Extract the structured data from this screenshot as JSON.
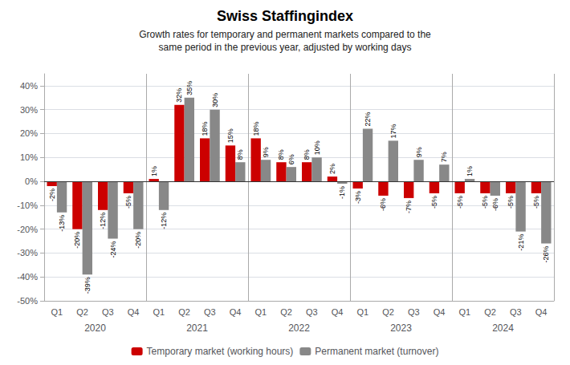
{
  "chart_data": {
    "type": "bar",
    "title": "Swiss Staffingindex",
    "subtitle": "Growth rates for temporary and permanent markets compared to the\nsame period in the previous year, adjusted by working days",
    "categories": [
      "Q1",
      "Q2",
      "Q3",
      "Q4",
      "Q1",
      "Q2",
      "Q3",
      "Q4",
      "Q1",
      "Q2",
      "Q3",
      "Q4",
      "Q1",
      "Q2",
      "Q3",
      "Q4",
      "Q1",
      "Q2",
      "Q3",
      "Q4"
    ],
    "annotations": [
      "2020",
      "2021",
      "2022",
      "2023",
      "2024"
    ],
    "series": [
      {
        "name": "Temporary market (working hours)",
        "color": "#cc0000",
        "values": [
          -2,
          -20,
          -12,
          -5,
          1,
          32,
          18,
          15,
          18,
          8,
          8,
          2,
          -3,
          -6,
          -7,
          -5,
          -5,
          -5,
          -5,
          -5
        ],
        "value_labels": [
          "-2%",
          "-20%",
          "-12%",
          "-5%",
          "1%",
          "32%",
          "18%",
          "15%",
          "18%",
          "8%",
          "8%",
          "2%",
          "-3%",
          "-6%",
          "-7%",
          "-5%",
          "-5%",
          "-5%",
          "-5%",
          "-5%"
        ]
      },
      {
        "name": "Permanent market (turnover)",
        "color": "#888888",
        "values": [
          -13,
          -39,
          -24,
          -20,
          -12,
          35,
          30,
          8,
          9,
          6,
          10,
          -1,
          22,
          17,
          9,
          7,
          1,
          -6,
          -21,
          -26
        ],
        "value_labels": [
          "-13%",
          "-39%",
          "-24%",
          "-20%",
          "-12%",
          "35%",
          "30%",
          "8%",
          "9%",
          "6%",
          "10%",
          "-1%",
          "22%",
          "17%",
          "9%",
          "7%",
          "1%",
          "-6%",
          "-21%",
          "-26%"
        ]
      }
    ],
    "ylim": [
      -50,
      45
    ],
    "yticks": [
      {
        "value": -50,
        "label": "-50%"
      },
      {
        "value": -40,
        "label": "-40%"
      },
      {
        "value": -30,
        "label": "-30%"
      },
      {
        "value": -20,
        "label": "-20%"
      },
      {
        "value": -10,
        "label": "-10%"
      },
      {
        "value": 0,
        "label": "0%"
      },
      {
        "value": 10,
        "label": "10%"
      },
      {
        "value": 20,
        "label": "20%"
      },
      {
        "value": 30,
        "label": "30%"
      },
      {
        "value": 40,
        "label": "40%"
      }
    ],
    "grid": true,
    "legend": "bottom",
    "data_labels": true
  }
}
